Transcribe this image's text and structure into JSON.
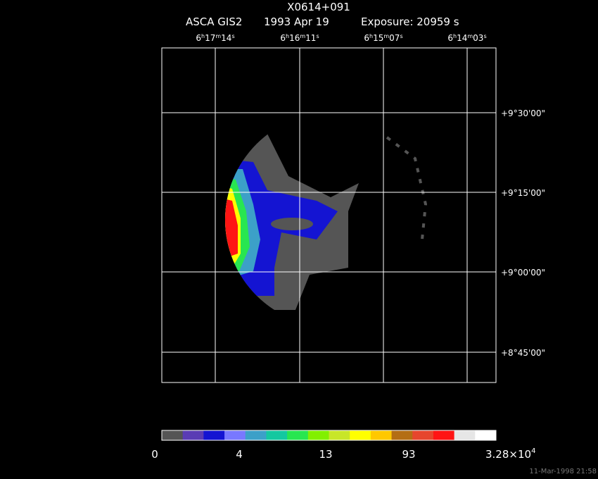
{
  "title": "X0614+091",
  "subtitle": [
    "ASCA GIS2",
    "1993 Apr 19",
    "Exposure: 20959 s"
  ],
  "ra_labels": [
    [
      "6",
      "h",
      "17",
      "m",
      "14",
      "s"
    ],
    [
      "6",
      "h",
      "16",
      "m",
      "11",
      "s"
    ],
    [
      "6",
      "h",
      "15",
      "m",
      "07",
      "s"
    ],
    [
      "6",
      "h",
      "14",
      "m",
      "03",
      "s"
    ]
  ],
  "dec_labels": [
    "+9°30'00\"",
    "+9°15'00\"",
    "+9°00'00\"",
    "+8°45'00\""
  ],
  "colorbar": {
    "colors": [
      "#555555",
      "#5a3cb4",
      "#1414d2",
      "#7878ff",
      "#3ca0c8",
      "#14c8a0",
      "#28e650",
      "#82f000",
      "#c8e628",
      "#ffff00",
      "#ffc800",
      "#b46e14",
      "#e6462d",
      "#ff1414",
      "#e6e6e6",
      "#ffffff"
    ],
    "labels": [
      "0",
      "4",
      "13",
      "93"
    ],
    "max_label": [
      "3.28×10",
      "4"
    ]
  },
  "timestamp": "11-Mar-1998 21:58"
}
